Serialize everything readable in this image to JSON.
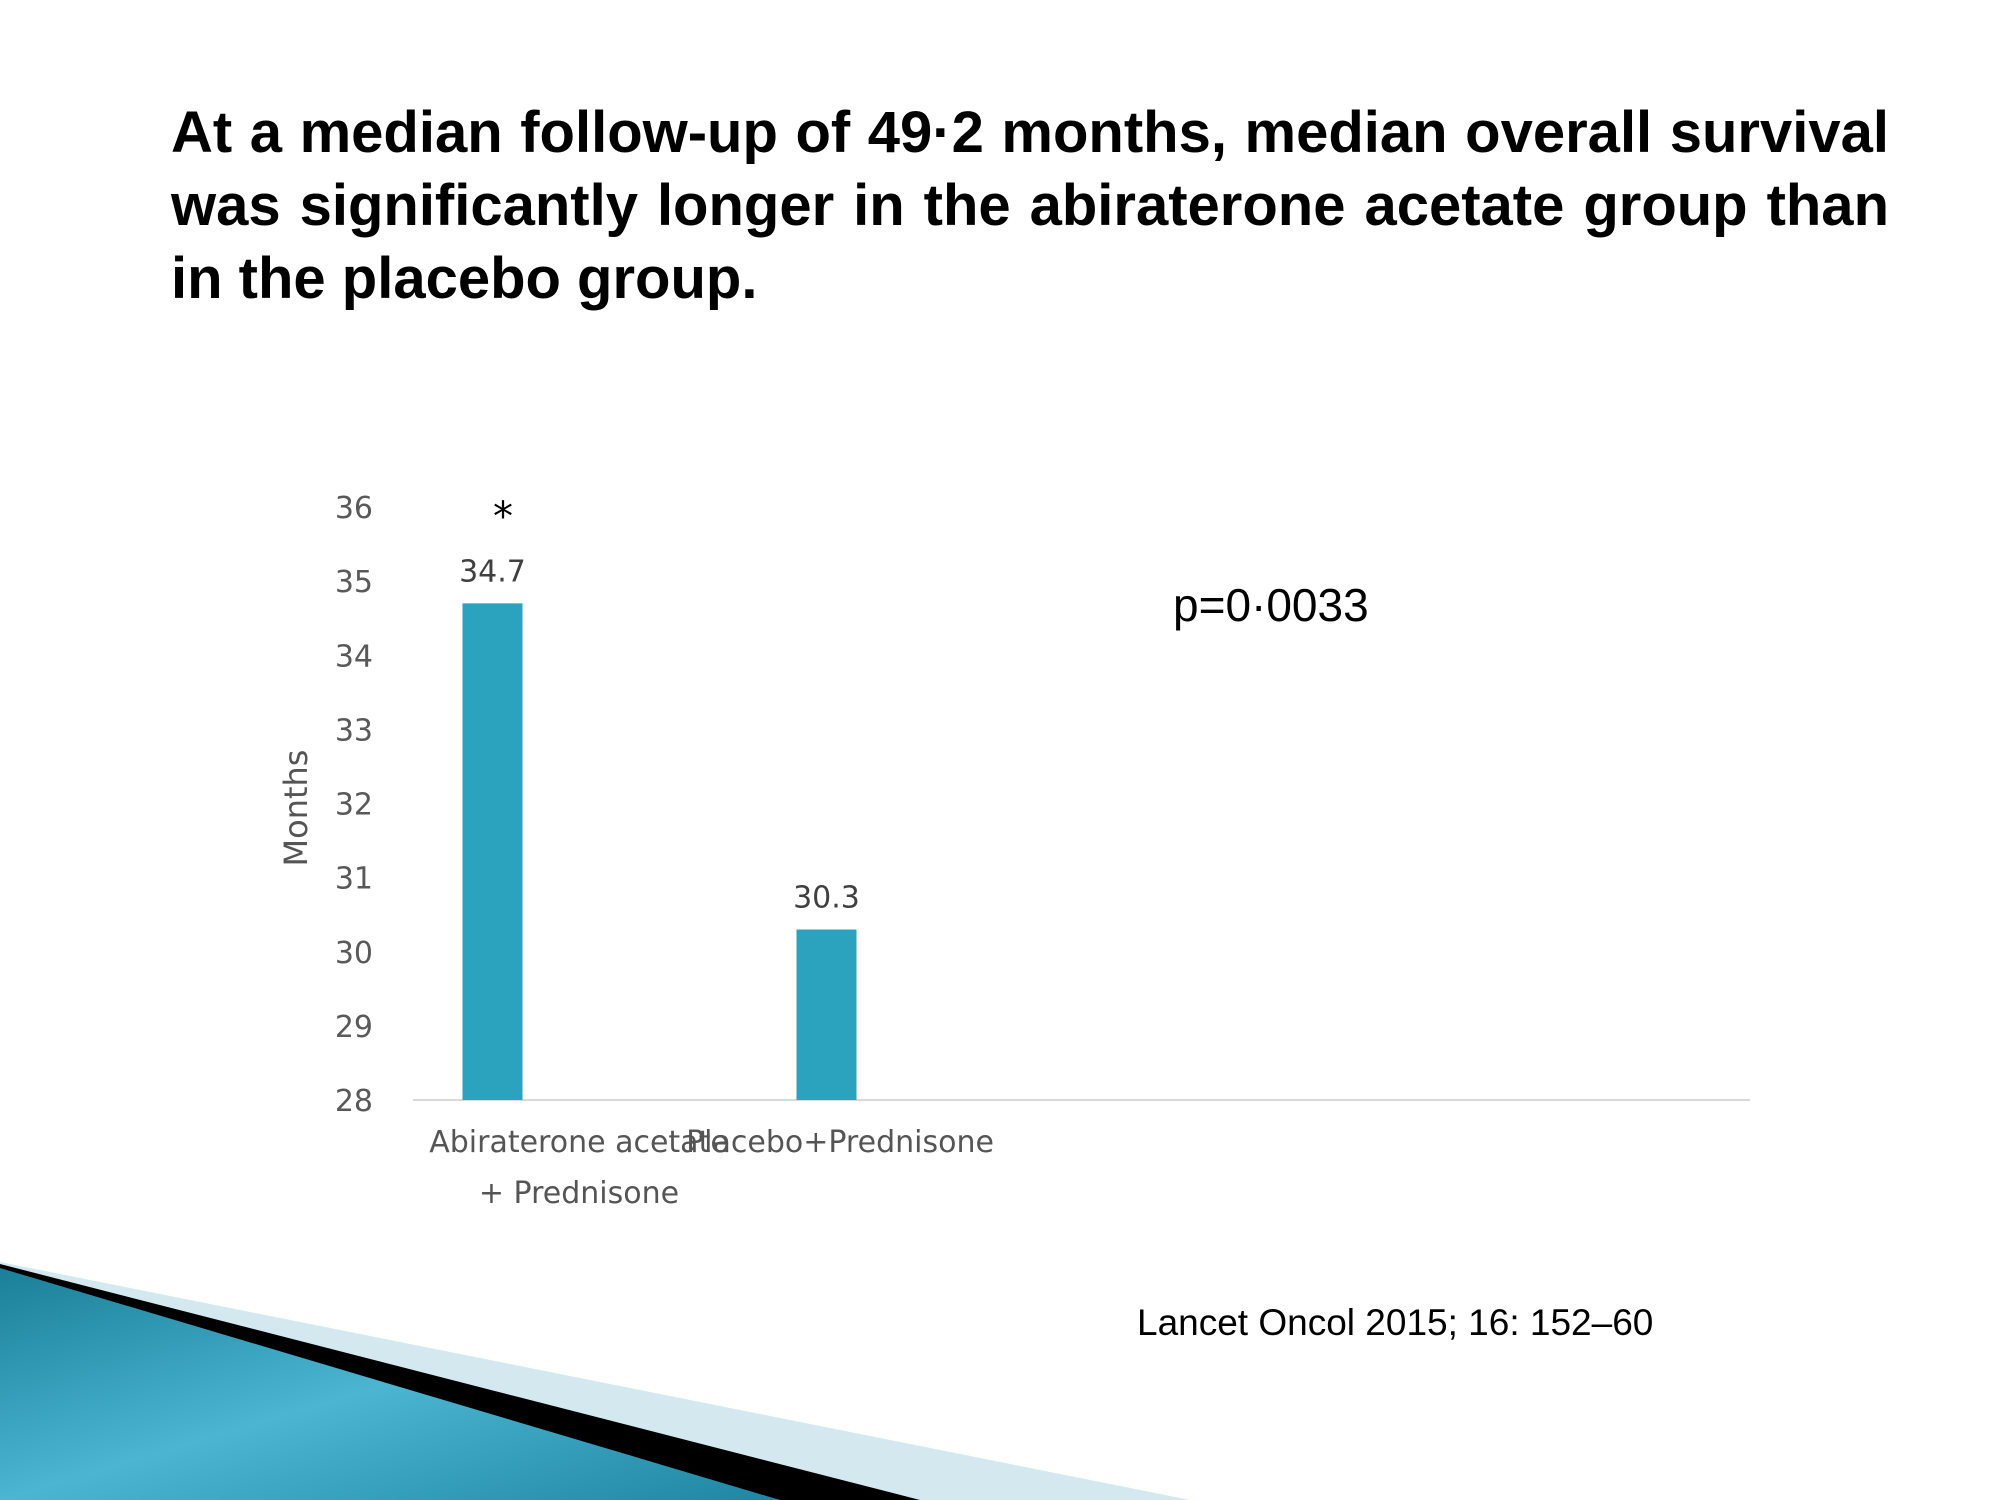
{
  "slide": {
    "title": "At a median follow-up of 49·2 months, median overall survival was significantly longer in the abiraterone acetate group than in the placebo group.",
    "p_value": "p=0·0033",
    "citation": "Lancet Oncol 2015; 16: 152–60",
    "significance_marker": "*"
  },
  "colors": {
    "bar": "#2ba3be",
    "axis_text": "#595959",
    "axis_line": "#d9d9d9"
  },
  "chart_data": {
    "type": "bar",
    "categories": [
      "Abiraterone acetate\n+ Prednisone",
      "Placebo+Prednisone"
    ],
    "values": [
      34.7,
      30.3
    ],
    "data_labels": [
      "34.7",
      "30.3"
    ],
    "title": "",
    "xlabel": "",
    "ylabel": "Months",
    "ylim": [
      28,
      36
    ],
    "yticks": [
      28,
      29,
      30,
      31,
      32,
      33,
      34,
      35,
      36
    ],
    "grid": false,
    "legend": "none"
  }
}
